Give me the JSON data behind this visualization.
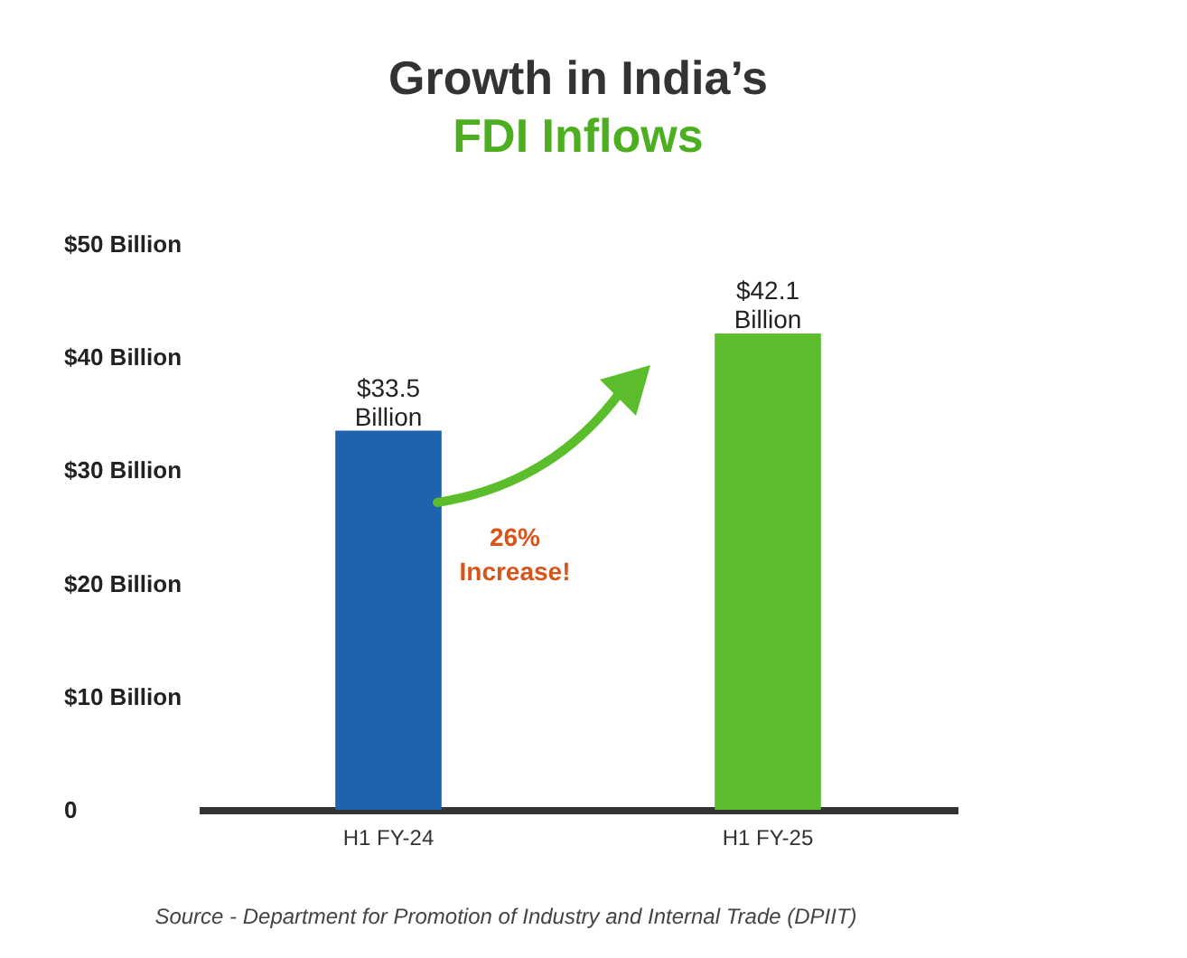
{
  "chart_data": {
    "type": "bar",
    "title": "Growth in India’s",
    "subtitle": "FDI Inflows",
    "categories": [
      "H1 FY-24",
      "H1 FY-25"
    ],
    "values": [
      33.5,
      42.1
    ],
    "colors": [
      "#1f62ad",
      "#5bbd2b"
    ],
    "value_labels": [
      "$33.5 Billion",
      "$42.1 Billion"
    ],
    "ylim": [
      0,
      50
    ],
    "yticks": [
      0,
      {
        "value": 10,
        "label": "$10 Billion"
      },
      {
        "value": 20,
        "label": "$20 Billion"
      },
      {
        "value": 30,
        "label": "$30 Billion"
      },
      {
        "value": 40,
        "label": "$40 Billion"
      },
      {
        "value": 50,
        "label": "$50 Billion"
      }
    ],
    "grid": false,
    "annotations": [
      "26% Increase!",
      "Source - Department for Promotion of Industry and Internal Trade (DPIIT)"
    ]
  }
}
